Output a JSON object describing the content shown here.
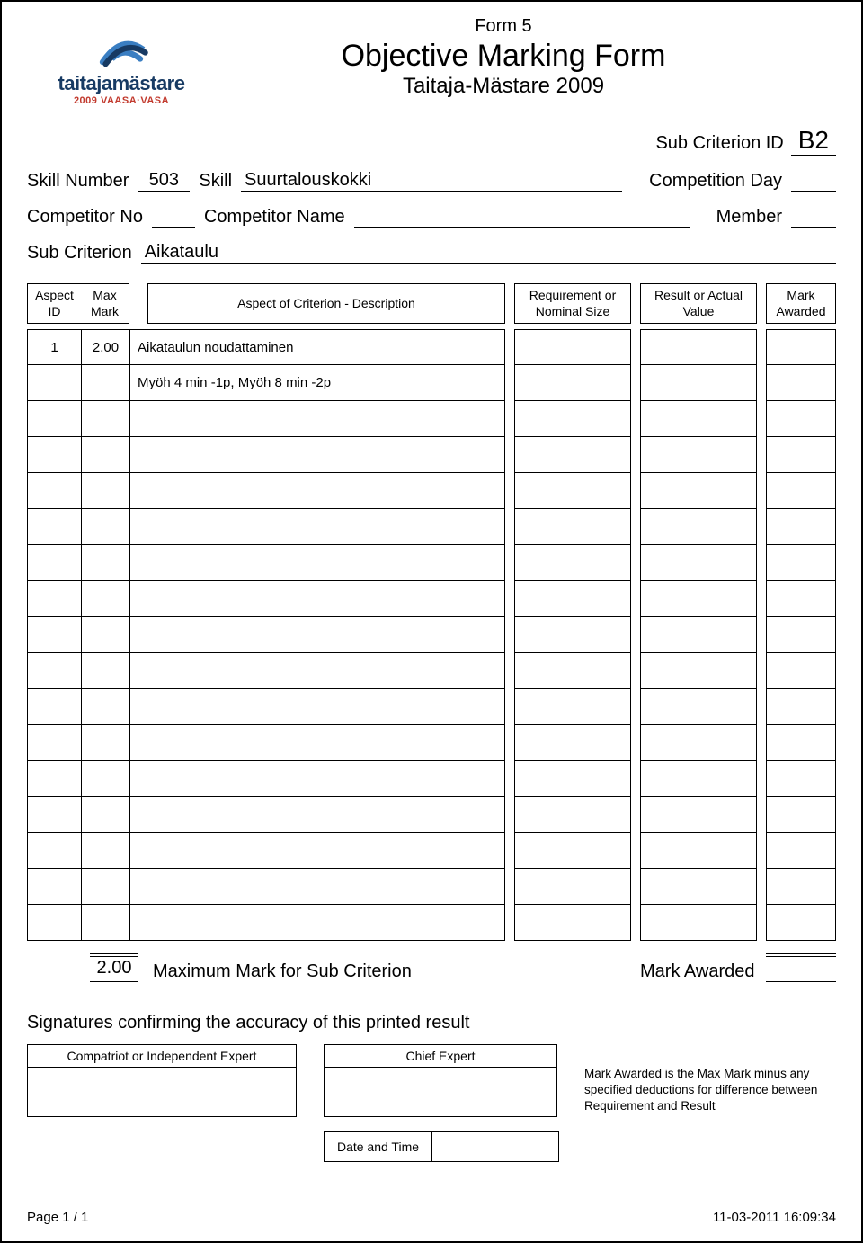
{
  "header": {
    "form_label": "Form 5",
    "title": "Objective Marking Form",
    "subtitle": "Taitaja-Mästare 2009",
    "logo_text_main": "taitajamästare",
    "logo_text_sub": "2009 VAASA·VASA"
  },
  "sub_criterion_id": {
    "label": "Sub Criterion ID",
    "value": "B2"
  },
  "info": {
    "skill_number_label": "Skill Number",
    "skill_number_value": "503",
    "skill_label": "Skill",
    "skill_value": "Suurtalouskokki",
    "competition_day_label": "Competition Day",
    "competition_day_value": "",
    "competitor_no_label": "Competitor No",
    "competitor_no_value": "",
    "competitor_name_label": "Competitor Name",
    "competitor_name_value": "",
    "member_label": "Member",
    "member_value": "",
    "sub_criterion_label": "Sub Criterion",
    "sub_criterion_value": "Aikataulu"
  },
  "table": {
    "headers": {
      "aspect_id": "Aspect\nID",
      "max_mark": "Max\nMark",
      "description": "Aspect of Criterion - Description",
      "requirement": "Requirement or\nNominal Size",
      "result": "Result or Actual\nValue",
      "mark_awarded": "Mark\nAwarded"
    },
    "rows": [
      {
        "id": "1",
        "max": "2.00",
        "desc": "Aikataulun noudattaminen",
        "req": "",
        "res": "",
        "mark": ""
      },
      {
        "id": "",
        "max": "",
        "desc": "Myöh 4 min -1p, Myöh 8 min -2p",
        "req": "",
        "res": "",
        "mark": ""
      },
      {
        "id": "",
        "max": "",
        "desc": "",
        "req": "",
        "res": "",
        "mark": ""
      },
      {
        "id": "",
        "max": "",
        "desc": "",
        "req": "",
        "res": "",
        "mark": ""
      },
      {
        "id": "",
        "max": "",
        "desc": "",
        "req": "",
        "res": "",
        "mark": ""
      },
      {
        "id": "",
        "max": "",
        "desc": "",
        "req": "",
        "res": "",
        "mark": ""
      },
      {
        "id": "",
        "max": "",
        "desc": "",
        "req": "",
        "res": "",
        "mark": ""
      },
      {
        "id": "",
        "max": "",
        "desc": "",
        "req": "",
        "res": "",
        "mark": ""
      },
      {
        "id": "",
        "max": "",
        "desc": "",
        "req": "",
        "res": "",
        "mark": ""
      },
      {
        "id": "",
        "max": "",
        "desc": "",
        "req": "",
        "res": "",
        "mark": ""
      },
      {
        "id": "",
        "max": "",
        "desc": "",
        "req": "",
        "res": "",
        "mark": ""
      },
      {
        "id": "",
        "max": "",
        "desc": "",
        "req": "",
        "res": "",
        "mark": ""
      },
      {
        "id": "",
        "max": "",
        "desc": "",
        "req": "",
        "res": "",
        "mark": ""
      },
      {
        "id": "",
        "max": "",
        "desc": "",
        "req": "",
        "res": "",
        "mark": ""
      },
      {
        "id": "",
        "max": "",
        "desc": "",
        "req": "",
        "res": "",
        "mark": ""
      },
      {
        "id": "",
        "max": "",
        "desc": "",
        "req": "",
        "res": "",
        "mark": ""
      },
      {
        "id": "",
        "max": "",
        "desc": "",
        "req": "",
        "res": "",
        "mark": ""
      }
    ]
  },
  "summary": {
    "max_mark_value": "2.00",
    "max_mark_label": "Maximum Mark for Sub Criterion",
    "mark_awarded_label": "Mark Awarded",
    "mark_awarded_value": ""
  },
  "signatures": {
    "title": "Signatures confirming the accuracy of this printed result",
    "compatriot_label": "Compatriot or Independent Expert",
    "chief_label": "Chief Expert",
    "note": "Mark Awarded is the Max Mark minus any specified deductions for difference between Requirement and Result",
    "date_time_label": "Date and Time",
    "date_time_value": ""
  },
  "footer": {
    "page": "Page 1 / 1",
    "timestamp": "11-03-2011   16:09:34"
  },
  "colors": {
    "logo_blue": "#173a63",
    "logo_accent_blue": "#3a7ec2",
    "logo_red": "#c23a2e",
    "border": "#000000",
    "background": "#ffffff"
  }
}
